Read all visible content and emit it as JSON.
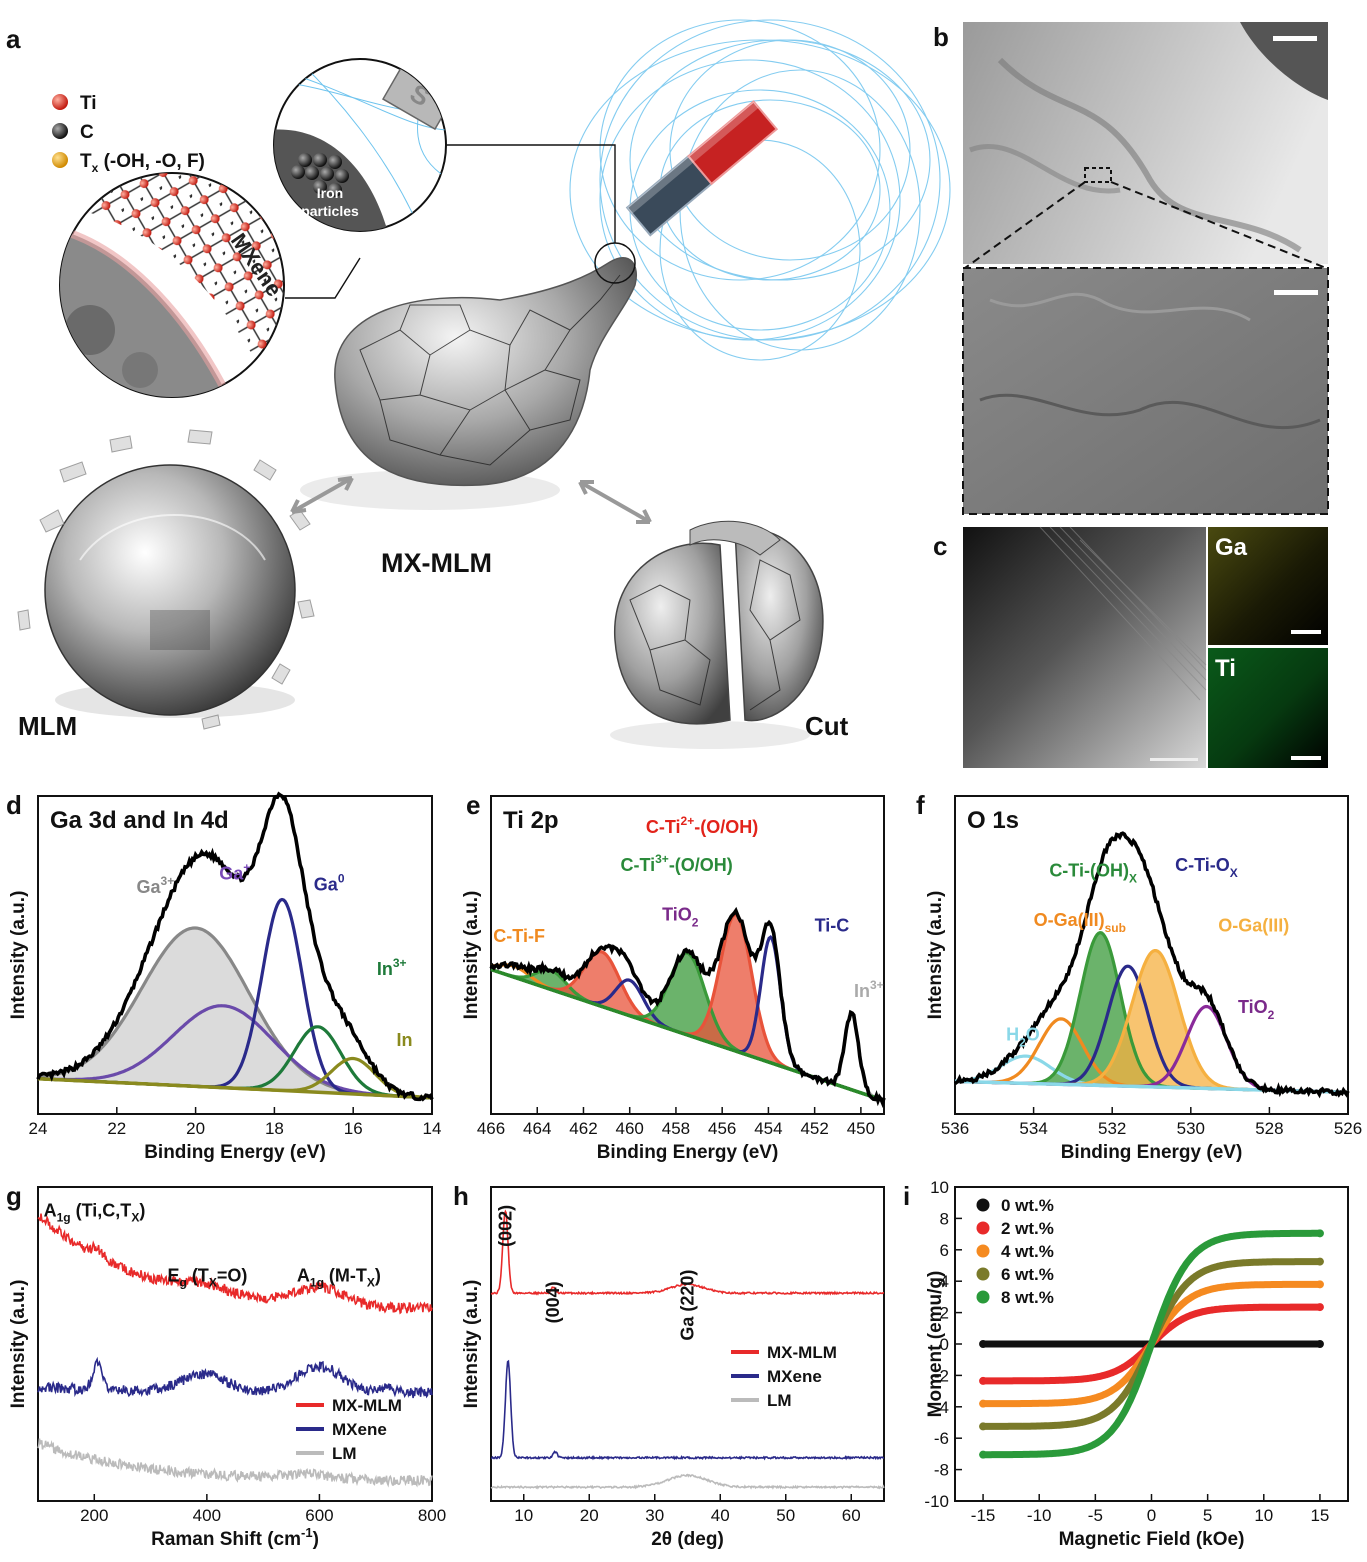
{
  "panel_labels": [
    "a",
    "b",
    "c",
    "d",
    "e",
    "f",
    "g",
    "h",
    "i"
  ],
  "illustration": {
    "legend": [
      {
        "label": "Ti",
        "sub": "",
        "rest": "",
        "color": "#e23a2a"
      },
      {
        "label": "C",
        "sub": "",
        "rest": "",
        "color": "#333333"
      },
      {
        "label": "T",
        "sub": "x",
        "rest": " (-OH, -O, F)",
        "color": "#f0b020"
      }
    ],
    "mxene_label": "MXene",
    "iron_label_1": "Iron",
    "iron_label_2": "particles",
    "magnet_mark": "S",
    "mlm_label": "MLM",
    "mxmlm_label": "MX-MLM",
    "cut_label": "Cut"
  },
  "eds": {
    "ga_label": "Ga",
    "ti_label": "Ti",
    "ga_color": "#8a8a2a",
    "ti_color": "#1f8a2a"
  },
  "chart_data": [
    {
      "id": "d",
      "type": "line",
      "title": "Ga 3d and In 4d",
      "xlabel": "Binding Energy (eV)",
      "ylabel": "Intensity (a.u.)",
      "xlim": [
        24,
        14
      ],
      "x_ticks": [
        24,
        22,
        20,
        18,
        16,
        14
      ],
      "baseline": {
        "x": [
          24,
          14
        ],
        "y": [
          0.1,
          0.03
        ],
        "color": "#8a8a1e"
      },
      "components": [
        {
          "name": "Ga3+",
          "center": 20.0,
          "fwhm": 3.2,
          "height": 0.58,
          "color": "#888888",
          "fill": true
        },
        {
          "name": "Ga+",
          "center": 19.3,
          "fwhm": 3.0,
          "height": 0.3,
          "color": "#6a4aaa",
          "fill": false
        },
        {
          "name": "Ga0",
          "center": 17.8,
          "fwhm": 1.2,
          "height": 0.7,
          "color": "#2a2a8a",
          "fill": false
        },
        {
          "name": "In3+",
          "center": 16.9,
          "fwhm": 1.4,
          "height": 0.24,
          "color": "#1e7a3a",
          "fill": false
        },
        {
          "name": "In",
          "center": 16.0,
          "fwhm": 1.3,
          "height": 0.13,
          "color": "#8a8a1e",
          "fill": false
        }
      ],
      "envelope_color": "#000000",
      "annotations": [
        {
          "base": "Ga",
          "sup": "3+",
          "sub": "",
          "color": "#888888",
          "x": 21.5,
          "y": 0.78
        },
        {
          "base": "Ga",
          "sup": "+",
          "sub": "",
          "color": "#7a4ab8",
          "x": 19.4,
          "y": 0.83
        },
        {
          "base": "Ga",
          "sup": "0",
          "sub": "",
          "color": "#2a2a8a",
          "x": 17.0,
          "y": 0.79
        },
        {
          "base": "In",
          "sup": "3+",
          "sub": "",
          "color": "#1e7a3a",
          "x": 15.4,
          "y": 0.48
        },
        {
          "base": "In",
          "sup": "",
          "sub": "",
          "color": "#8a8a1e",
          "x": 14.9,
          "y": 0.22
        }
      ]
    },
    {
      "id": "e",
      "type": "line",
      "title": "Ti 2p",
      "xlabel": "Binding Energy (eV)",
      "ylabel": "Intensity (a.u.)",
      "xlim": [
        466,
        449
      ],
      "x_ticks": [
        466,
        464,
        462,
        460,
        458,
        456,
        454,
        452,
        450
      ],
      "baseline": {
        "x": [
          466,
          449
        ],
        "y": [
          0.5,
          0.02
        ],
        "color": "#2a8a2a"
      },
      "components": [
        {
          "name": "C-Ti-F",
          "center": 465.0,
          "fwhm": 1.6,
          "height": 0.04,
          "color": "#f08a20",
          "fill": false
        },
        {
          "name": "C-Ti3+-(O/OH)",
          "center": 463.4,
          "fwhm": 1.5,
          "height": 0.07,
          "color": "#3a9a3a",
          "fill": true
        },
        {
          "name": "C-Ti2+-(O/OH)",
          "center": 461.2,
          "fwhm": 1.8,
          "height": 0.2,
          "color": "#e8533a",
          "fill": true
        },
        {
          "name": "TiO2",
          "center": 460.0,
          "fwhm": 1.4,
          "height": 0.13,
          "color": "#2a2a8a",
          "fill": false
        },
        {
          "name": "C-Ti3+-(O/OH)",
          "center": 457.5,
          "fwhm": 1.8,
          "height": 0.3,
          "color": "#3a9a3a",
          "fill": true
        },
        {
          "name": "C-Ti2+-(O/OH)",
          "center": 455.4,
          "fwhm": 1.6,
          "height": 0.5,
          "color": "#e8533a",
          "fill": true
        },
        {
          "name": "Ti-C",
          "center": 453.9,
          "fwhm": 1.0,
          "height": 0.46,
          "color": "#2a2a8a",
          "fill": false
        },
        {
          "name": "In3+",
          "center": 450.4,
          "fwhm": 0.7,
          "height": 0.28,
          "color": "#aaaaaa",
          "fill": false
        }
      ],
      "envelope_color": "#000000",
      "annotations": [
        {
          "base": "C-Ti",
          "sup": "2+",
          "sub": "",
          "tail": "-(O/OH)",
          "color": "#e2231a",
          "x": 459.3,
          "y": 1.0
        },
        {
          "base": "C-Ti",
          "sup": "3+",
          "sub": "",
          "tail": "-(O/OH)",
          "color": "#2a8a3a",
          "x": 460.4,
          "y": 0.86
        },
        {
          "base": "TiO",
          "sup": "",
          "sub": "2",
          "tail": "",
          "color": "#7a2a8a",
          "x": 458.6,
          "y": 0.68
        },
        {
          "base": "C-Ti-F",
          "sup": "",
          "sub": "",
          "tail": "",
          "color": "#f08a20",
          "x": 465.9,
          "y": 0.6
        },
        {
          "base": "Ti-C",
          "sup": "",
          "sub": "",
          "tail": "",
          "color": "#2a2a8a",
          "x": 452.0,
          "y": 0.64
        },
        {
          "base": "In",
          "sup": "3+",
          "sub": "",
          "tail": "",
          "color": "#aaaaaa",
          "x": 450.3,
          "y": 0.4
        }
      ]
    },
    {
      "id": "f",
      "type": "line",
      "title": "O 1s",
      "xlabel": "Binding Energy (eV)",
      "ylabel": "Intensity (a.u.)",
      "xlim": [
        536,
        526
      ],
      "x_ticks": [
        536,
        534,
        532,
        530,
        528,
        526
      ],
      "baseline": {
        "x": [
          536,
          526
        ],
        "y": [
          0.09,
          0.05
        ],
        "color": "#8ad8e8"
      },
      "components": [
        {
          "name": "H2O",
          "center": 534.2,
          "fwhm": 1.5,
          "height": 0.1,
          "color": "#8ad8e8",
          "fill": false
        },
        {
          "name": "O-Ga(III)sub",
          "center": 533.3,
          "fwhm": 1.3,
          "height": 0.24,
          "color": "#f08a20",
          "fill": false
        },
        {
          "name": "C-Ti-(OH)x",
          "center": 532.3,
          "fwhm": 1.2,
          "height": 0.56,
          "color": "#3a9a3a",
          "fill": true
        },
        {
          "name": "C-Ti-Ox",
          "center": 531.6,
          "fwhm": 1.2,
          "height": 0.44,
          "color": "#2a2a8a",
          "fill": false
        },
        {
          "name": "O-Ga(III)",
          "center": 530.9,
          "fwhm": 1.4,
          "height": 0.5,
          "color": "#f5b040",
          "fill": true
        },
        {
          "name": "TiO2",
          "center": 529.6,
          "fwhm": 1.2,
          "height": 0.3,
          "color": "#8a2a9a",
          "fill": false
        }
      ],
      "envelope_color": "#000000",
      "annotations": [
        {
          "base": "C-Ti-(OH)",
          "sup": "",
          "sub": "X",
          "tail": "",
          "color": "#2a8a3a",
          "x": 533.6,
          "y": 0.84
        },
        {
          "base": "C-Ti-O",
          "sup": "",
          "sub": "X",
          "tail": "",
          "color": "#2a2a8a",
          "x": 530.4,
          "y": 0.86
        },
        {
          "base": "O-Ga(III)",
          "sup": "",
          "sub": "sub",
          "tail": "",
          "color": "#f08a20",
          "x": 534.0,
          "y": 0.66
        },
        {
          "base": "O-Ga(III)",
          "sup": "",
          "sub": "",
          "tail": "",
          "color": "#f5b040",
          "x": 529.3,
          "y": 0.64
        },
        {
          "base": "H",
          "sup": "",
          "sub": "2",
          "tail": "O",
          "color": "#8ad8e8",
          "x": 534.7,
          "y": 0.24
        },
        {
          "base": "TiO",
          "sup": "",
          "sub": "2",
          "tail": "",
          "color": "#7a2a8a",
          "x": 528.8,
          "y": 0.34
        }
      ]
    },
    {
      "id": "g",
      "type": "line",
      "title": "",
      "xlabel": "Raman Shift (cm",
      "xlabel_sup": "-1",
      "xlabel_tail": ")",
      "ylabel": "Intensity (a.u.)",
      "xlim": [
        100,
        800
      ],
      "x_ticks": [
        200,
        400,
        600,
        800
      ],
      "series": [
        {
          "name": "MX-MLM",
          "color": "#e82a2a",
          "offset": 0.62,
          "decay": 0.33,
          "peaks": [
            [
              205,
              0.03,
              10
            ],
            [
              395,
              0.03,
              45
            ],
            [
              600,
              0.06,
              45
            ]
          ]
        },
        {
          "name": "MXene",
          "color": "#2a2a8a",
          "offset": 0.34,
          "decay": 0.02,
          "peaks": [
            [
              205,
              0.09,
              8
            ],
            [
              395,
              0.06,
              40
            ],
            [
              600,
              0.09,
              40
            ],
            [
              720,
              0.02,
              10
            ]
          ]
        },
        {
          "name": "LM",
          "color": "#bbbbbb",
          "offset": 0.04,
          "decay": 0.13,
          "peaks": [
            [
              580,
              0.015,
              40
            ]
          ]
        }
      ],
      "annotations": [
        {
          "base": "A",
          "sub": "1g",
          "tail": " (Ti,C,T",
          "sub2": "X",
          "end": ")",
          "x": 110,
          "y": 0.94
        },
        {
          "base": "E",
          "sub": "g",
          "tail": " (T",
          "sub2": "X",
          "end": "=O)",
          "x": 330,
          "y": 0.72
        },
        {
          "base": "A",
          "sub": "1g",
          "tail": " (M-T",
          "sub2": "X",
          "end": ")",
          "x": 560,
          "y": 0.72
        }
      ],
      "legend_position": "lower-right"
    },
    {
      "id": "h",
      "type": "line",
      "title": "",
      "xlabel": "2θ (deg)",
      "ylabel": "Intensity (a.u.)",
      "xlim": [
        5,
        65
      ],
      "x_ticks": [
        10,
        20,
        30,
        40,
        50,
        60
      ],
      "series": [
        {
          "name": "MX-MLM",
          "color": "#e82a2a",
          "offset": 0.68,
          "peaks": [
            [
              7.2,
              0.28,
              0.4
            ],
            [
              14.5,
              0.02,
              0.3
            ],
            [
              35.0,
              0.03,
              2.5
            ]
          ]
        },
        {
          "name": "MXene",
          "color": "#2a2a8a",
          "offset": 0.12,
          "peaks": [
            [
              7.6,
              0.33,
              0.4
            ],
            [
              14.8,
              0.02,
              0.3
            ]
          ]
        },
        {
          "name": "LM",
          "color": "#bbbbbb",
          "offset": 0.02,
          "peaks": [
            [
              35.0,
              0.04,
              3.0
            ]
          ]
        }
      ],
      "annotations": [
        {
          "text": "(002)",
          "x": 7.2,
          "y": 0.98
        },
        {
          "text": "(004)",
          "x": 14.5,
          "y": 0.72
        },
        {
          "text": "Ga (220)",
          "x": 35.0,
          "y": 0.76
        }
      ],
      "legend_position": "center-right"
    },
    {
      "id": "i",
      "type": "line",
      "title": "",
      "xlabel": "Magnetic Field (kOe)",
      "ylabel": "Moment (emu/g)",
      "xlim": [
        -17.5,
        17.5
      ],
      "ylim": [
        -10,
        10
      ],
      "x_ticks": [
        -15,
        -10,
        -5,
        0,
        5,
        10,
        15
      ],
      "y_ticks": [
        -10,
        -8,
        -6,
        -4,
        -2,
        0,
        2,
        4,
        6,
        8,
        10
      ],
      "field_range": [
        -15,
        15
      ],
      "saturation_field": 7.5,
      "series": [
        {
          "name": "0 wt.%",
          "color": "#111111",
          "ms": 0.0
        },
        {
          "name": "2 wt.%",
          "color": "#e82a2a",
          "ms": 2.35
        },
        {
          "name": "4 wt.%",
          "color": "#f58a20",
          "ms": 3.8
        },
        {
          "name": "6 wt.%",
          "color": "#7a7a2a",
          "ms": 5.25
        },
        {
          "name": "8 wt.%",
          "color": "#2a9a3a",
          "ms": 7.05
        }
      ],
      "legend_position": "top-left"
    }
  ]
}
